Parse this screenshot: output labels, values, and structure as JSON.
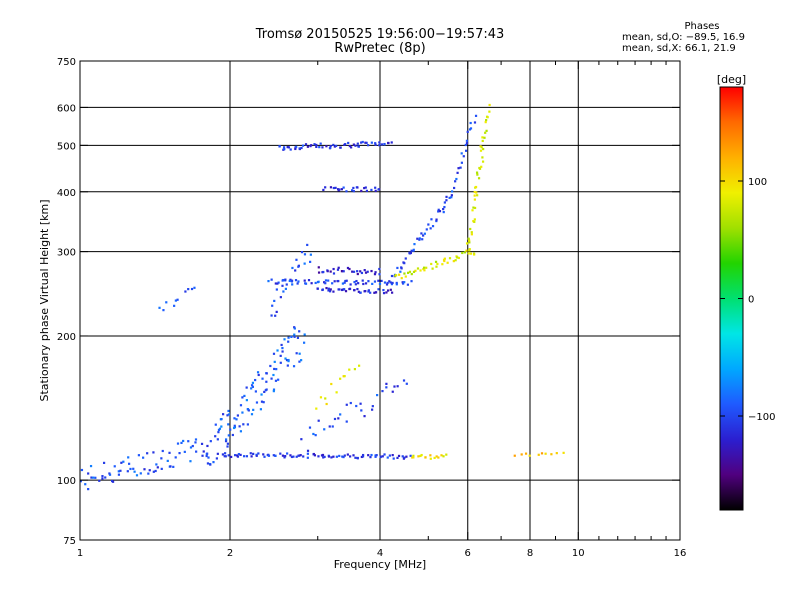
{
  "header": {
    "title": "Tromsø 20150525 19:56:00−19:57:43",
    "subtitle": "RwPretec (8p)"
  },
  "phases": {
    "title": "Phases",
    "line_o": "mean, sd,O: −89.5, 16.9",
    "line_x": "mean, sd,X:  66.1, 21.9"
  },
  "colorbar": {
    "label": "[deg]",
    "range": [
      -180,
      180
    ],
    "ticks": [
      {
        "value": 100,
        "label": "100"
      },
      {
        "value": 0,
        "label": "0"
      },
      {
        "value": -100,
        "label": "−100"
      }
    ],
    "colors": [
      "#000000",
      "#50007f",
      "#2b1fd0",
      "#1f5aff",
      "#00a8ff",
      "#00e6e6",
      "#00e070",
      "#22d400",
      "#a0e000",
      "#f0f000",
      "#ffb000",
      "#ff6a00",
      "#ff0000"
    ]
  },
  "chart_data": {
    "type": "scatter",
    "title": "Tromsø 20150525 19:56:00−19:57:43",
    "subtitle": "RwPretec (8p)",
    "xlabel": "Frequency [MHz]",
    "ylabel": "Stationary phase Virtual Height [km]",
    "xscale": "log",
    "yscale": "log",
    "xlim": [
      1,
      16
    ],
    "ylim": [
      75,
      750
    ],
    "xticks": [
      {
        "value": 1,
        "label": "1"
      },
      {
        "value": 2,
        "label": "2"
      },
      {
        "value": 4,
        "label": "4"
      },
      {
        "value": 6,
        "label": "6"
      },
      {
        "value": 8,
        "label": "8"
      },
      {
        "value": 10,
        "label": "10"
      },
      {
        "value": 16,
        "label": "16"
      }
    ],
    "xminor": [
      3,
      5,
      7,
      9,
      11,
      12,
      13,
      14,
      15
    ],
    "yticks": [
      {
        "value": 75,
        "label": "75"
      },
      {
        "value": 100,
        "label": "100"
      },
      {
        "value": 200,
        "label": "200"
      },
      {
        "value": 300,
        "label": "300"
      },
      {
        "value": 400,
        "label": "400"
      },
      {
        "value": 500,
        "label": "500"
      },
      {
        "value": 600,
        "label": "600"
      },
      {
        "value": 750,
        "label": "750"
      }
    ],
    "grid": true,
    "color_scale": "phase [deg]",
    "traces": [
      {
        "name": "",
        "x0": 1.0,
        "x1": 1.8,
        "y0": 100,
        "y1": 118,
        "phase": -95,
        "n": 70,
        "spread": 0.06
      },
      {
        "name": "",
        "x0": 1.9,
        "x1": 4.6,
        "y0": 113,
        "y1": 112,
        "phase": -105,
        "n": 90,
        "spread": 0.01
      },
      {
        "name": "",
        "x0": 4.6,
        "x1": 5.4,
        "y0": 112,
        "y1": 112,
        "phase": 95,
        "n": 16,
        "spread": 0.01
      },
      {
        "name": "",
        "x0": 1.8,
        "x1": 2.8,
        "y0": 115,
        "y1": 200,
        "phase": -90,
        "n": 110,
        "spread": 0.1
      },
      {
        "name": "",
        "x0": 2.4,
        "x1": 4.6,
        "y0": 260,
        "y1": 258,
        "phase": -100,
        "n": 60,
        "spread": 0.01
      },
      {
        "name": "",
        "x0": 3.0,
        "x1": 4.2,
        "y0": 250,
        "y1": 248,
        "phase": -115,
        "n": 40,
        "spread": 0.01
      },
      {
        "name": "",
        "x0": 3.0,
        "x1": 4.0,
        "y0": 275,
        "y1": 272,
        "phase": -120,
        "n": 30,
        "spread": 0.015
      },
      {
        "name": "",
        "x0": 4.2,
        "x1": 5.6,
        "y0": 260,
        "y1": 400,
        "phase": -100,
        "n": 45,
        "spread": 0.02
      },
      {
        "name": "",
        "x0": 5.6,
        "x1": 6.2,
        "y0": 400,
        "y1": 580,
        "phase": -100,
        "n": 20,
        "spread": 0.02
      },
      {
        "name": "",
        "x0": 4.3,
        "x1": 6.2,
        "y0": 265,
        "y1": 300,
        "phase": 80,
        "n": 40,
        "spread": 0.015
      },
      {
        "name": "",
        "x0": 6.0,
        "x1": 6.6,
        "y0": 300,
        "y1": 600,
        "phase": 80,
        "n": 45,
        "spread": 0.02
      },
      {
        "name": "",
        "x0": 2.5,
        "x1": 4.2,
        "y0": 495,
        "y1": 505,
        "phase": -110,
        "n": 60,
        "spread": 0.012
      },
      {
        "name": "",
        "x0": 3.1,
        "x1": 4.0,
        "y0": 405,
        "y1": 405,
        "phase": -110,
        "n": 25,
        "spread": 0.01
      },
      {
        "name": "",
        "x0": 2.4,
        "x1": 2.9,
        "y0": 225,
        "y1": 300,
        "phase": -95,
        "n": 25,
        "spread": 0.06
      },
      {
        "name": "",
        "x0": 1.45,
        "x1": 1.7,
        "y0": 225,
        "y1": 255,
        "phase": -90,
        "n": 10,
        "spread": 0.02
      },
      {
        "name": "",
        "x0": 3.0,
        "x1": 3.6,
        "y0": 140,
        "y1": 180,
        "phase": 85,
        "n": 12,
        "spread": 0.05
      },
      {
        "name": "",
        "x0": 2.8,
        "x1": 4.5,
        "y0": 120,
        "y1": 160,
        "phase": -100,
        "n": 30,
        "spread": 0.06
      },
      {
        "name": "",
        "x0": 7.5,
        "x1": 9.3,
        "y0": 113,
        "y1": 113,
        "phase": 110,
        "n": 10,
        "spread": 0.01
      }
    ]
  }
}
